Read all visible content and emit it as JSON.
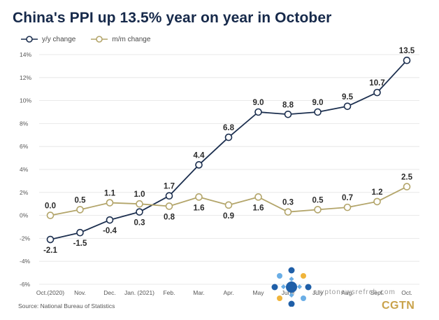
{
  "title": "China's PPI up 13.5% year on year in October",
  "source": "Source: National Bureau of Statistics",
  "brand": "CGTN",
  "watermark_text": "cryptonewsrefrch.com",
  "colors": {
    "title": "#16294a",
    "yoy": "#1c2f4f",
    "mom": "#b3a56a",
    "grid": "#e3e3e3",
    "axis_text": "#555555",
    "brand": "#c9a24a"
  },
  "legend": [
    {
      "label": "y/y change",
      "color": "#1c2f4f"
    },
    {
      "label": "m/m change",
      "color": "#b3a56a"
    }
  ],
  "chart_data": {
    "type": "line",
    "categories": [
      "Oct.(2020)",
      "Nov.",
      "Dec.",
      "Jan. (2021)",
      "Feb.",
      "Mar.",
      "Apr.",
      "May",
      "June",
      "July",
      "Aug.",
      "Sept.",
      "Oct."
    ],
    "series": [
      {
        "name": "y/y change",
        "values": [
          -2.1,
          -1.5,
          -0.4,
          0.3,
          1.7,
          4.4,
          6.8,
          9.0,
          8.8,
          9.0,
          9.5,
          10.7,
          13.5
        ],
        "labels": [
          "-2.1",
          "-1.5",
          "-0.4",
          "0.3",
          "1.7",
          "4.4",
          "6.8",
          "9.0",
          "8.8",
          "9.0",
          "9.5",
          "10.7",
          "13.5"
        ]
      },
      {
        "name": "m/m change",
        "values": [
          0.0,
          0.5,
          1.1,
          1.0,
          0.8,
          1.6,
          0.9,
          1.6,
          0.3,
          0.5,
          0.7,
          1.2,
          2.5
        ],
        "labels": [
          "0.0",
          "0.5",
          "1.1",
          "1.0",
          "0.8",
          "1.6",
          "0.9",
          "1.6",
          "0.3",
          "0.5",
          "0.7",
          "1.2",
          "2.5"
        ]
      }
    ],
    "yticks": [
      -6,
      -4,
      -2,
      0,
      2,
      4,
      6,
      8,
      10,
      12,
      14
    ],
    "ytick_labels": [
      "-6%",
      "-4%",
      "-2%",
      "0%",
      "2%",
      "4%",
      "6%",
      "8%",
      "10%",
      "12%",
      "14%"
    ],
    "ylim": [
      -6,
      14
    ],
    "grid": true,
    "legend_position": "top-left"
  }
}
